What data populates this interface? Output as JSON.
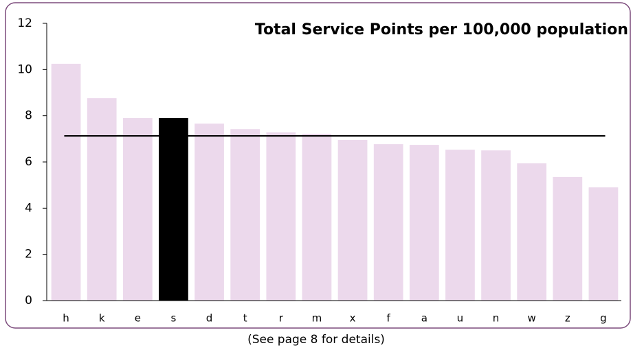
{
  "chart_data": {
    "type": "bar",
    "title": "Total Service Points per 100,000 population",
    "footnote": "(See page 8 for details)",
    "categories": [
      "h",
      "k",
      "e",
      "s",
      "d",
      "t",
      "r",
      "m",
      "x",
      "f",
      "a",
      "u",
      "n",
      "w",
      "z",
      "g"
    ],
    "values": [
      10.25,
      8.76,
      7.9,
      7.9,
      7.66,
      7.42,
      7.28,
      7.22,
      6.95,
      6.77,
      6.74,
      6.53,
      6.5,
      5.94,
      5.35,
      4.9
    ],
    "colors": [
      "#ecd9ec",
      "#ecd9ec",
      "#ecd9ec",
      "#000000",
      "#ecd9ec",
      "#ecd9ec",
      "#ecd9ec",
      "#ecd9ec",
      "#ecd9ec",
      "#ecd9ec",
      "#ecd9ec",
      "#ecd9ec",
      "#ecd9ec",
      "#ecd9ec",
      "#ecd9ec",
      "#ecd9ec"
    ],
    "reference_line": 7.13,
    "ylim": [
      0,
      12
    ],
    "yticks": [
      0,
      2,
      4,
      6,
      8,
      10,
      12
    ],
    "grid": false
  }
}
